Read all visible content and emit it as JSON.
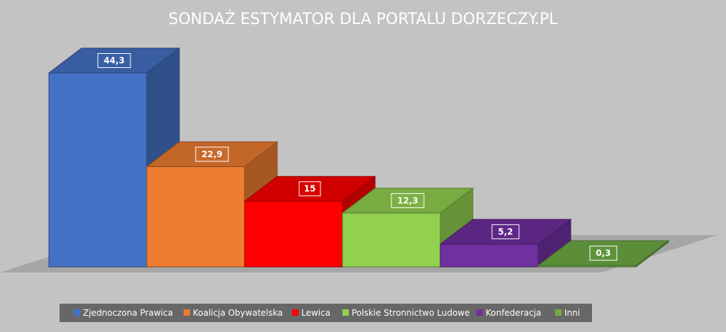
{
  "chart_data": {
    "type": "bar",
    "title": "SONDAŻ ESTYMATOR DLA PORTALU DORZECZY.PL",
    "categories": [
      "Zjednoczona Prawica",
      "Koalicja Obywatelska",
      "Lewica",
      "Polskie Stronnictwo Ludowe",
      "Konfederacja",
      "Inni"
    ],
    "values": [
      44.3,
      22.9,
      15,
      12.3,
      5.2,
      0.3
    ],
    "data_labels": [
      "44,3",
      "22,9",
      "15",
      "12,3",
      "5,2",
      "0,3"
    ],
    "series_colors": [
      "#4472c4",
      "#ed7d31",
      "#ff0000",
      "#92d050",
      "#7030a0",
      "#70ad47"
    ],
    "xlabel": "",
    "ylabel": "",
    "ylim": [
      0,
      44.3
    ],
    "grid": false,
    "legend": "bottom",
    "style": "3d-columns"
  }
}
